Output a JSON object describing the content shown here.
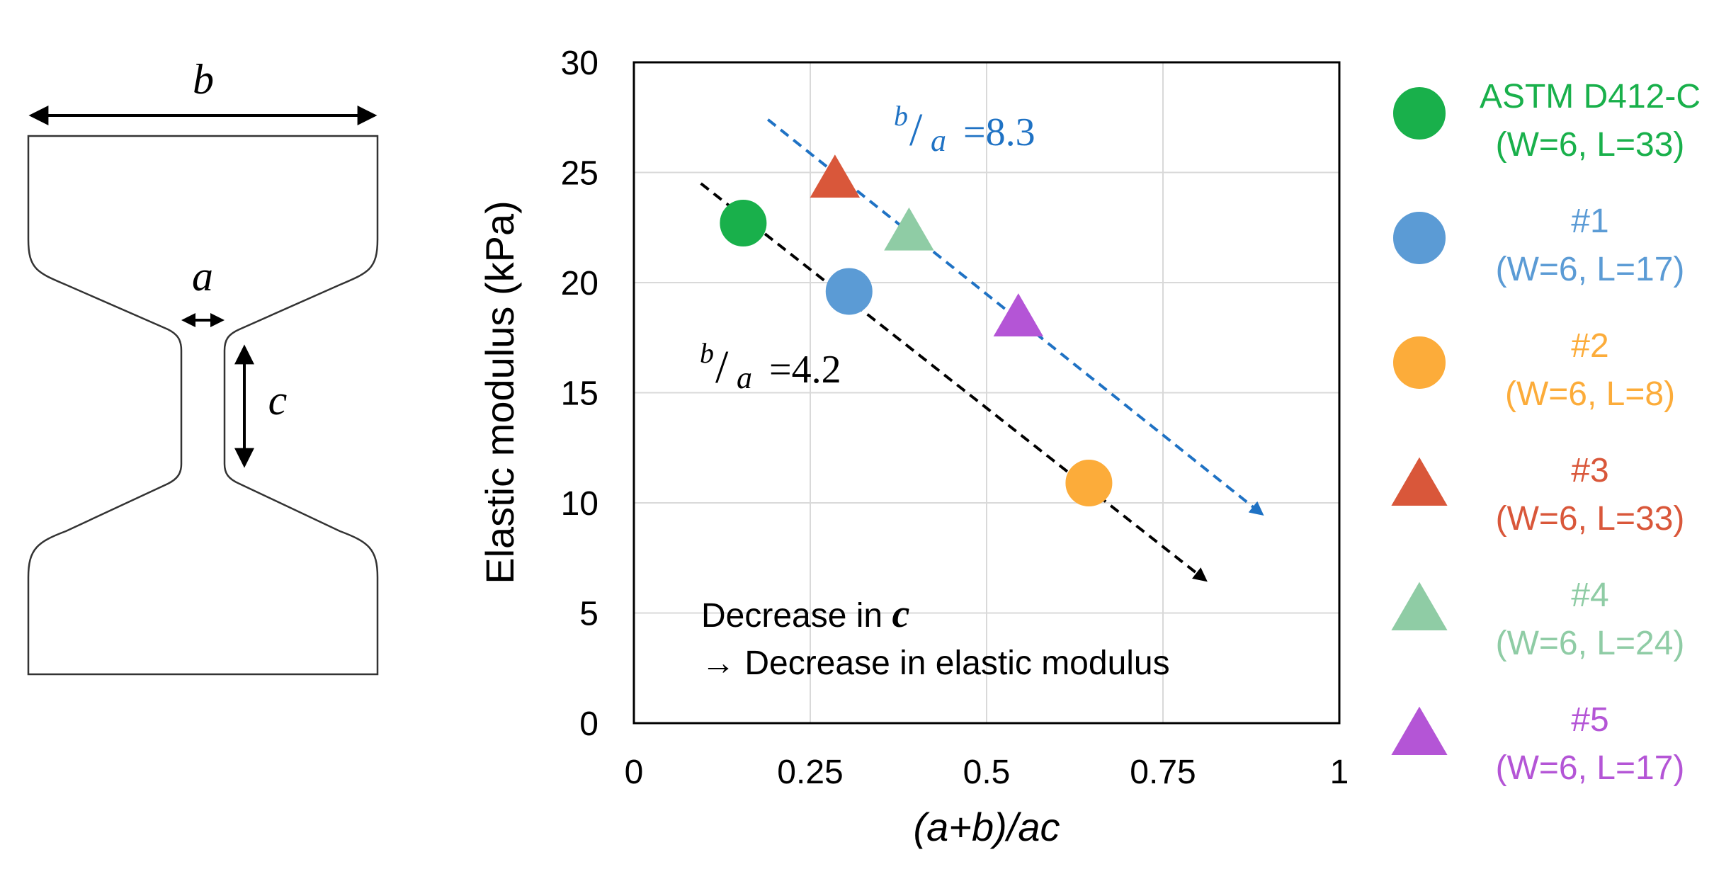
{
  "specimen": {
    "labels": {
      "b": "b",
      "a": "a",
      "c": "c"
    }
  },
  "chart_data": {
    "type": "scatter",
    "xlabel": "(a+b)/ac",
    "ylabel": "Elastic modulus (kPa)",
    "xlim": [
      0,
      1
    ],
    "ylim": [
      0,
      30
    ],
    "x_ticks": [
      0,
      0.25,
      0.5,
      0.75,
      1
    ],
    "x_tick_labels": [
      "0",
      "0.25",
      "0.5",
      "0.75",
      "1"
    ],
    "y_ticks": [
      0,
      5,
      10,
      15,
      20,
      25,
      30
    ],
    "y_tick_labels": [
      "0",
      "5",
      "10",
      "15",
      "20",
      "25",
      "30"
    ],
    "grid": true,
    "legend_position": "right",
    "series": [
      {
        "name": "ASTM D412-C",
        "detail": "(W=6, L=33)",
        "marker": "circle",
        "color": "#19b04b",
        "x": 0.155,
        "y": 22.7
      },
      {
        "name": "#1",
        "detail": "(W=6, L=17)",
        "marker": "circle",
        "color": "#5b9bd5",
        "x": 0.305,
        "y": 19.6
      },
      {
        "name": "#2",
        "detail": "(W=6, L=8)",
        "marker": "circle",
        "color": "#fcac3a",
        "x": 0.645,
        "y": 10.9
      },
      {
        "name": "#3",
        "detail": "(W=6, L=33)",
        "marker": "triangle",
        "color": "#d9573a",
        "x": 0.285,
        "y": 24.6
      },
      {
        "name": "#4",
        "detail": "(W=6, L=24)",
        "marker": "triangle",
        "color": "#8fcca5",
        "x": 0.39,
        "y": 22.2
      },
      {
        "name": "#5",
        "detail": "(W=6, L=17)",
        "marker": "triangle",
        "color": "#b455d6",
        "x": 0.545,
        "y": 18.3
      }
    ],
    "trend_lines": [
      {
        "label_num": "b",
        "label_den": "a",
        "label_value": "=8.3",
        "color": "#1f72c4",
        "x1": 0.19,
        "y1": 27.4,
        "x2": 0.89,
        "y2": 9.5
      },
      {
        "label_num": "b",
        "label_den": "a",
        "label_value": "=4.2",
        "color": "#000000",
        "x1": 0.095,
        "y1": 24.5,
        "x2": 0.81,
        "y2": 6.5
      }
    ],
    "annotation": {
      "line1_prefix": "Decrease in ",
      "line1_var": "c",
      "line2": "→ Decrease in elastic modulus"
    }
  }
}
